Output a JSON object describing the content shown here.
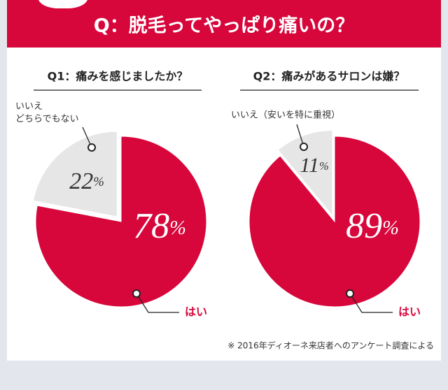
{
  "header": {
    "title": "Q：脱毛ってやっぱり痛いの？"
  },
  "chart_data": [
    {
      "type": "pie",
      "title": "Q1：痛みを感じましたか？",
      "categories": [
        "はい",
        "いいえ\nどちらでもない"
      ],
      "values": [
        78,
        22
      ],
      "value_labels": [
        "78%",
        "22%"
      ],
      "colors": [
        "#d7063b",
        "#e6e6e6"
      ],
      "exploded": [
        false,
        true
      ]
    },
    {
      "type": "pie",
      "title": "Q2：痛みがあるサロンは嫌？",
      "categories": [
        "はい",
        "いいえ（安いを特に重視）"
      ],
      "values": [
        89,
        11
      ],
      "value_labels": [
        "89%",
        "11%"
      ],
      "colors": [
        "#d7063b",
        "#e6e6e6"
      ],
      "exploded": [
        false,
        true
      ]
    }
  ],
  "note": "※ 2016年ディオーネ来店者へのアンケート調査による"
}
